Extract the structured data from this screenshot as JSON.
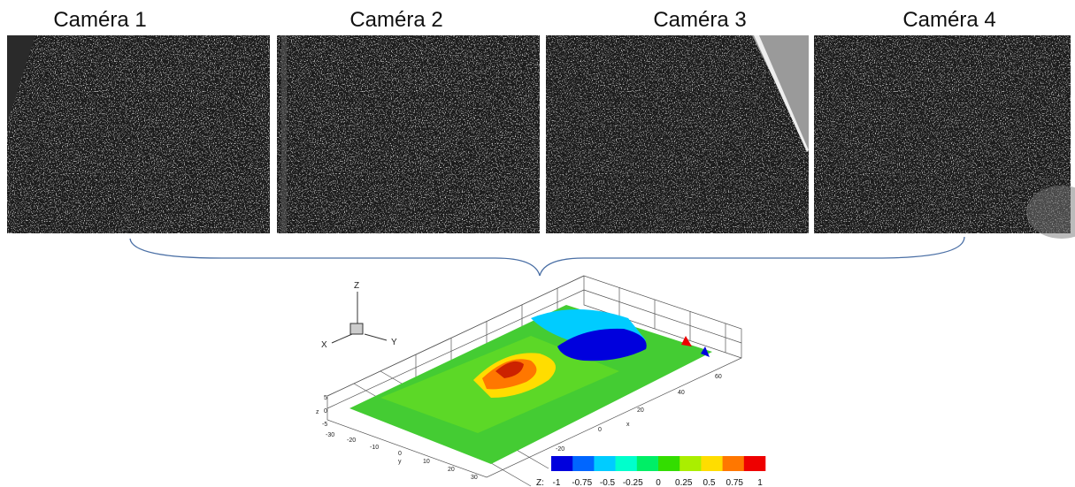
{
  "cameras": [
    {
      "label": "Caméra 1"
    },
    {
      "label": "Caméra 2"
    },
    {
      "label": "Caméra 3"
    },
    {
      "label": "Caméra 4"
    }
  ],
  "plot": {
    "triad": {
      "z": "Z",
      "x": "X",
      "y": "Y"
    },
    "z_axis": {
      "label": "z",
      "ticks": [
        "5",
        "0",
        "-5"
      ]
    },
    "y_axis": {
      "label": "y",
      "ticks": [
        "-30",
        "-20",
        "-10",
        "0",
        "10",
        "20",
        "30"
      ]
    },
    "x_axis": {
      "label": "x",
      "ticks": [
        "-20",
        "0",
        "20",
        "40",
        "60"
      ]
    },
    "colorbar": {
      "label": "Z:",
      "ticks": [
        "-1",
        "-0.75",
        "-0.5",
        "-0.25",
        "0",
        "0.25",
        "0.5",
        "0.75",
        "1"
      ],
      "colors": [
        "#0000dd",
        "#0066ff",
        "#00ccff",
        "#00ffcc",
        "#00ee66",
        "#33dd00",
        "#aaee00",
        "#ffdd00",
        "#ff7700",
        "#ee0000"
      ]
    }
  }
}
